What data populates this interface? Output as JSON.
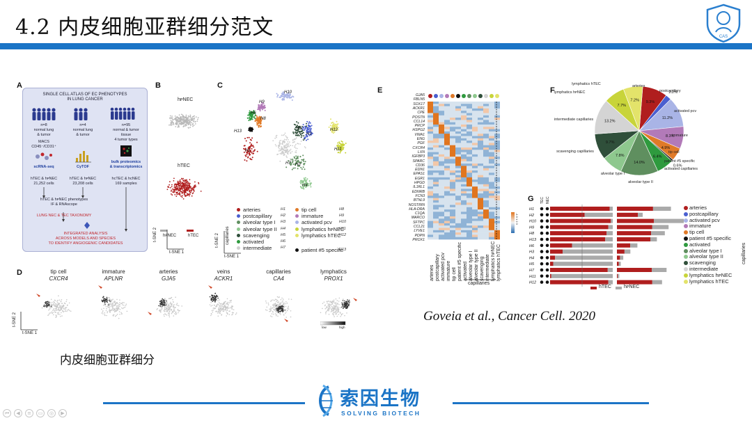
{
  "slide": {
    "title": "4.2 内皮细胞亚群细分范文",
    "citation": "Goveia et al., Cancer Cell. 2020",
    "subtitle": "内皮细胞亚群细分"
  },
  "footer": {
    "brand_cn": "索因生物",
    "brand_en": "SOLVING BIOTECH",
    "top_logo_text": "CAS",
    "nav_icons": [
      "first-icon",
      "prev-icon",
      "list-icon",
      "comment-icon",
      "view-icon",
      "next-icon"
    ]
  },
  "panels": {
    "A": {
      "letter": "A",
      "title_line1": "SINGLE CELL ATLAS OF EC PHENOTYPES",
      "title_line2": "IN LUNG CANCER",
      "col1": {
        "n": "n=8",
        "l1": "normal lung",
        "l2": "& tumor",
        "method1": "MACS",
        "method2": "CD45⁻/CD31⁺",
        "tech": "scRNA-seq",
        "res1": "hTEC & hᴘNEC",
        "res2": "21,252 cells"
      },
      "col2": {
        "n": "n=4",
        "l1": "normal lung",
        "l2": "& tumor",
        "tech": "CyTOF",
        "res1": "hTEC & hᴘNEC",
        "res2": "23,208 cells"
      },
      "col3": {
        "n": "n=95",
        "l1": "normal & tumor",
        "l2": "tissue",
        "l3": "4 tumor types",
        "tech1": "bulk proteomics",
        "tech2": "& transcriptomics",
        "res1": "hcTEC & hcNEC",
        "res2": "169 samples"
      },
      "pheno1": "hTEC & hᴘNEC phenotypes",
      "pheno2": "IF & RNAscope",
      "taxonomy": "LUNG NEC & TEC TAXONOMY",
      "integrated1": "INTEGRATED ANALYSIS",
      "integrated2": "ACROSS MODELS AND SPECIES",
      "integrated3": "TO IDENTIFY ANGIOGENIC CANDIDATES"
    },
    "B": {
      "letter": "B",
      "top_label": "hᴘNEC",
      "bottom_label": "hTEC",
      "legend1": "hᴘNEC",
      "legend2": "hTEC",
      "xaxis": "t-SNE 1",
      "yaxis": "t-SNE 2"
    },
    "C": {
      "letter": "C",
      "capillaries_label": "capillaries",
      "xaxis": "t-SNE 1",
      "yaxis": "t-SNE 2",
      "legend": [
        {
          "name": "arteries",
          "code": "H1",
          "color": "#b01e1e"
        },
        {
          "name": "postcapillary",
          "code": "H2",
          "color": "#4a5fd0"
        },
        {
          "name": "alveolar type I",
          "code": "H3",
          "color": "#5f8f5f"
        },
        {
          "name": "alveolar type II",
          "code": "H4",
          "color": "#8ec88e"
        },
        {
          "name": "scavenging",
          "code": "H5",
          "color": "#2f4f3a"
        },
        {
          "name": "activated",
          "code": "H6",
          "color": "#2e9a3e"
        },
        {
          "name": "intermediate",
          "code": "H7",
          "color": "#cfcfcf"
        },
        {
          "name": "tip cell",
          "code": "H8",
          "color": "#e07a28"
        },
        {
          "name": "immature",
          "code": "H9",
          "color": "#b27ab8"
        },
        {
          "name": "activated pcv",
          "code": "H10",
          "color": "#a9b4e6"
        },
        {
          "name": "lymphatics hᴘNEC",
          "code": "H11",
          "color": "#c8d43a"
        },
        {
          "name": "lymphatics hTEC",
          "code": "H12",
          "color": "#e3e36a"
        },
        {
          "name": "patient #5 specific",
          "code": "H13",
          "color": "#111111"
        }
      ],
      "cluster_labels": [
        "H10",
        "H9",
        "H8",
        "H6",
        "H13",
        "H5",
        "H2",
        "H3",
        "H12",
        "H11",
        "H7",
        "H4",
        "H1"
      ]
    },
    "D": {
      "letter": "D",
      "genes": [
        {
          "cell": "tip cell",
          "gene": "CXCR4"
        },
        {
          "cell": "immature",
          "gene": "APLNR"
        },
        {
          "cell": "arteries",
          "gene": "GJA5"
        },
        {
          "cell": "veins",
          "gene": "ACKR1"
        },
        {
          "cell": "capillaries",
          "gene": "CA4"
        },
        {
          "cell": "lymphatics",
          "gene": "PROX1"
        }
      ],
      "xaxis": "t-SNE 1",
      "yaxis": "t-SNE 2",
      "scale_low": "low",
      "scale_high": "high"
    },
    "E": {
      "letter": "E",
      "genes": [
        "GJA5",
        "FBLN5",
        "SOX17",
        "ACKR1",
        "CPE",
        "POSTN",
        "CCL14",
        "PRCP",
        "HSPG2",
        "VWA1",
        "ENG",
        "PGF",
        "CXCR4",
        "LXN",
        "IGFBP3",
        "SPARC",
        "CD36",
        "EDN1",
        "EPAS1",
        "EGR1",
        "HPGD",
        "IL1RL1",
        "EDNRB",
        "FCN3",
        "BTNL9",
        "NOSTRIN",
        "HLA-DRA",
        "C1QA",
        "MARCO",
        "SFTPC",
        "CCL21",
        "LYVE1",
        "PDPN",
        "PROX1"
      ],
      "columns": [
        "arteries",
        "postcapillary",
        "activated pcv",
        "immature",
        "tip cell",
        "patient #5 specific",
        "activated",
        "alveolar type I",
        "alveolar type II",
        "scavenging",
        "intermediate",
        "lymphatics hᴘNEC",
        "lymphatics hTEC"
      ],
      "capillaries_label": "capillaries",
      "scale_label": "-1 0 1 2 3"
    },
    "F": {
      "letter": "F",
      "slices": [
        {
          "label": "arteries",
          "pct": 9.3,
          "color": "#b01e1e"
        },
        {
          "label": "postcapillary",
          "pct": 2.2,
          "color": "#4a5fd0"
        },
        {
          "label": "activated pcv",
          "pct": 11.2,
          "color": "#a9b4e6"
        },
        {
          "label": "immature",
          "pct": 8.3,
          "color": "#b27ab8"
        },
        {
          "label": "tip cell",
          "pct": 4.9,
          "color": "#e07a28"
        },
        {
          "label": "patient #5 specific",
          "pct": 0.6,
          "color": "#111111"
        },
        {
          "label": "activated capillaries",
          "pct": 6.4,
          "color": "#2e9a3e"
        },
        {
          "label": "alveolar type I",
          "pct": 14.0,
          "color": "#5f8f5f"
        },
        {
          "label": "alveolar type II",
          "pct": 7.8,
          "color": "#8ec88e"
        },
        {
          "label": "scavenging capillaries",
          "pct": 9.7,
          "color": "#2f4f3a"
        },
        {
          "label": "intermediate capillaries",
          "pct": 13.2,
          "color": "#d4d4d4"
        },
        {
          "label": "lymphatics hᴘNEC",
          "pct": 7.7,
          "color": "#c8d43a"
        },
        {
          "label": "lymphatics hTEC",
          "pct": 7.2,
          "color": "#e3e36a"
        }
      ],
      "pct_labels": [
        "9.3%",
        "2.2%",
        "11.2%",
        "8.3%",
        "4.9%",
        "0.6%",
        "6.4%",
        "14.0%",
        "7.8%",
        "9.7%",
        "13.2%",
        "7.7%",
        "7.2%"
      ]
    },
    "G": {
      "letter": "G",
      "col_heads": [
        "TEC",
        "NEC"
      ],
      "rows": [
        {
          "code": "H1",
          "tec": 0.95,
          "nec": 0.55,
          "label": "arteries",
          "color": "#b01e1e"
        },
        {
          "code": "H2",
          "tec": 0.55,
          "nec": 0.15,
          "label": "postcapillary",
          "color": "#4a5fd0"
        },
        {
          "code": "H10",
          "tec": 0.97,
          "nec": 0.92,
          "label": "activated pcv",
          "color": "#a9b4e6"
        },
        {
          "code": "H9",
          "tec": 0.93,
          "nec": 0.5,
          "label": "immature",
          "color": "#b27ab8"
        },
        {
          "code": "H8",
          "tec": 0.9,
          "nec": 0.42,
          "label": "tip cell",
          "color": "#e07a28"
        },
        {
          "code": "H13",
          "tec": 0.88,
          "nec": 0.2,
          "label": "patient #5 specific",
          "color": "#111111"
        },
        {
          "code": "H6",
          "tec": 0.35,
          "nec": 0.22,
          "label": "activated",
          "color": "#2e9a3e"
        },
        {
          "code": "H3",
          "tec": 0.2,
          "nec": 0.18,
          "label": "alveolar type I",
          "color": "#5f8f5f"
        },
        {
          "code": "H4",
          "tec": 0.08,
          "nec": 0.1,
          "label": "alveolar type II",
          "color": "#8ec88e"
        },
        {
          "code": "H5",
          "tec": 0.05,
          "nec": 0.06,
          "label": "scavenging",
          "color": "#2f4f3a"
        },
        {
          "code": "H7",
          "tec": 0.92,
          "nec": 0.45,
          "label": "intermediate",
          "color": "#d4d4d4"
        },
        {
          "code": "H11",
          "tec": 0.02,
          "nec": 0.05,
          "label": "lymphatics hᴘNEC",
          "color": "#c8d43a"
        },
        {
          "code": "H12",
          "tec": 0.93,
          "nec": 0.3,
          "label": "lymphatics hTEC",
          "color": "#e3e36a"
        }
      ],
      "capillaries_label": "capillaries",
      "legend_tec": "hTEC",
      "legend_nec": "hᴘNEC"
    }
  }
}
